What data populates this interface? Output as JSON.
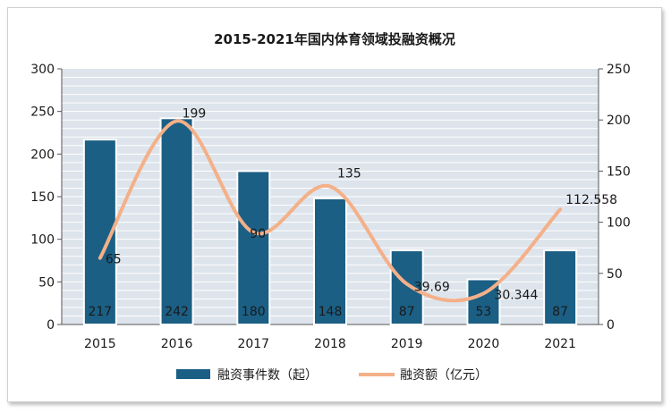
{
  "chart_data": {
    "type": "bar",
    "title": "2015-2021年国内体育领域投融资概况",
    "categories": [
      "2015",
      "2016",
      "2017",
      "2018",
      "2019",
      "2020",
      "2021"
    ],
    "series": [
      {
        "name": "融资事件数（起）",
        "type": "bar",
        "axis": "left",
        "values": [
          217,
          242,
          180,
          148,
          87,
          53,
          87
        ],
        "labels": [
          "217",
          "242",
          "180",
          "148",
          "87",
          "53",
          "87"
        ],
        "color": "#1b5f85"
      },
      {
        "name": "融资额（亿元）",
        "type": "line",
        "smooth": true,
        "axis": "right",
        "values": [
          65,
          199,
          90,
          135,
          39.69,
          30.344,
          112.558
        ],
        "labels": [
          "65",
          "199",
          "90",
          "135",
          "39.69",
          "30.344",
          "112.558"
        ],
        "color": "#f4b088"
      }
    ],
    "y_left": {
      "min": 0,
      "max": 300,
      "ticks": [
        "0",
        "50",
        "100",
        "150",
        "200",
        "250",
        "300"
      ]
    },
    "y_right": {
      "min": 0,
      "max": 250,
      "ticks": [
        "0",
        "50",
        "100",
        "150",
        "200",
        "250"
      ]
    },
    "grid": true,
    "legend": "bottom"
  }
}
